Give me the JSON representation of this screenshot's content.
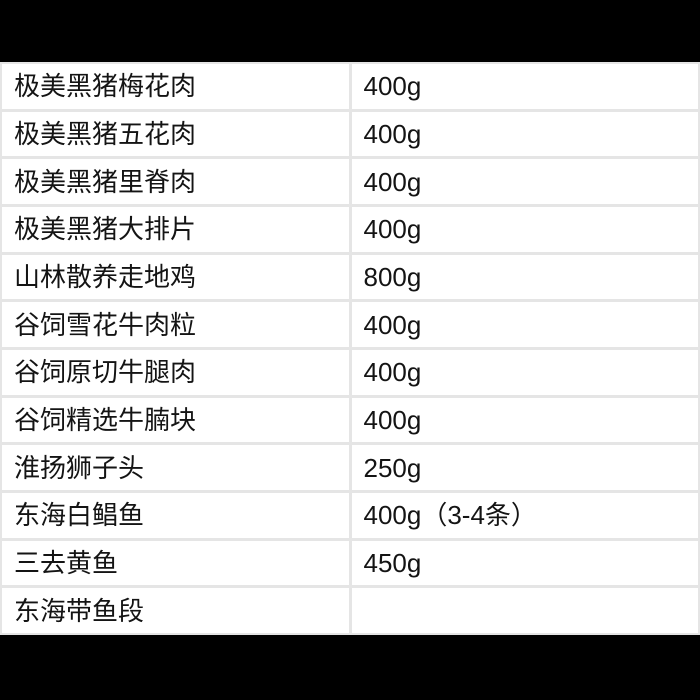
{
  "table": {
    "columns": [
      "product_name",
      "weight"
    ],
    "rows": [
      {
        "name": "极美黑猪梅花肉",
        "weight": "400g"
      },
      {
        "name": "极美黑猪五花肉",
        "weight": "400g"
      },
      {
        "name": "极美黑猪里脊肉",
        "weight": "400g"
      },
      {
        "name": "极美黑猪大排片",
        "weight": "400g"
      },
      {
        "name": "山林散养走地鸡",
        "weight": "800g"
      },
      {
        "name": "谷饲雪花牛肉粒",
        "weight": "400g"
      },
      {
        "name": "谷饲原切牛腿肉",
        "weight": "400g"
      },
      {
        "name": "谷饲精选牛腩块",
        "weight": "400g"
      },
      {
        "name": "淮扬狮子头",
        "weight": "250g"
      },
      {
        "name": "东海白鲳鱼",
        "weight": "400g（3-4条）"
      },
      {
        "name": "三去黄鱼",
        "weight": "450g"
      },
      {
        "name": "东海带鱼段",
        "weight": ""
      }
    ]
  },
  "colors": {
    "letterbox": "#000000",
    "cell_background": "#ffffff",
    "grid_line": "#e5e5e5",
    "text": "#141414"
  }
}
